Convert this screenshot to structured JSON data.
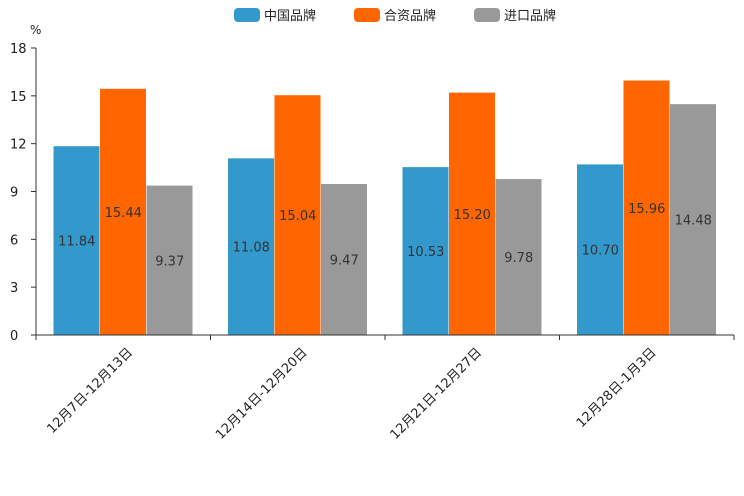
{
  "chart_data": {
    "type": "bar",
    "title": "",
    "xlabel": "",
    "ylabel": "%",
    "ylim": [
      0,
      18
    ],
    "yticks": [
      0,
      3,
      6,
      9,
      12,
      15,
      18
    ],
    "grid": false,
    "legend_position": "top-center",
    "categories": [
      "12月7日-12月13日",
      "12月14日-12月20日",
      "12月21日-12月27日",
      "12月28日-1月3日"
    ],
    "series": [
      {
        "name": "中国品牌",
        "color": "#3399cc",
        "values": [
          11.84,
          11.08,
          10.53,
          10.7
        ],
        "labels": [
          "11.84",
          "11.08",
          "10.53",
          "10.70"
        ]
      },
      {
        "name": "合资品牌",
        "color": "#ff6600",
        "values": [
          15.44,
          15.04,
          15.2,
          15.96
        ],
        "labels": [
          "15.44",
          "15.04",
          "15.20",
          "15.96"
        ]
      },
      {
        "name": "进口品牌",
        "color": "#999999",
        "values": [
          9.37,
          9.47,
          9.78,
          14.48
        ],
        "labels": [
          "9.37",
          "9.47",
          "9.78",
          "14.48"
        ]
      }
    ]
  }
}
